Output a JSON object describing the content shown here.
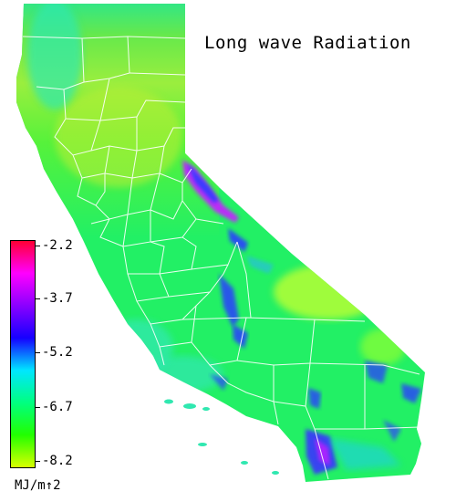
{
  "title": "Long wave Radiation",
  "legend": {
    "units": "MJ/m↑2",
    "gradient": [
      "#ff0033",
      "#ff00ff",
      "#8a00ff",
      "#1600ff",
      "#00e6ff",
      "#00ff80",
      "#22ff00",
      "#d8ff00"
    ],
    "ticks": [
      "-2.2",
      "-3.7",
      "-5.2",
      "-6.7",
      "-8.2"
    ]
  },
  "colors": {
    "base_fill": "#22f065",
    "north_fill": "#a8ee3a",
    "desert_fill": "#b6ff34",
    "cyan_fill": "#32e8a8",
    "blue_patch": "#2a3cff",
    "magenta_patch": "#c224ff",
    "county_lines": "#ffffff"
  }
}
